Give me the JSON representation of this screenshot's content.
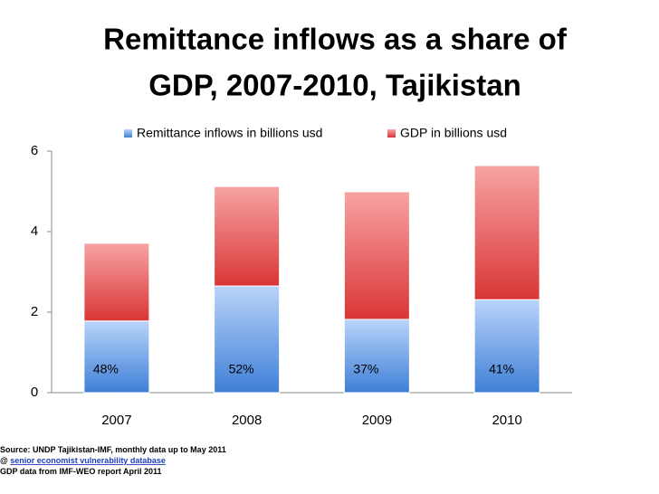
{
  "chart_data": {
    "type": "stacked_bar",
    "title": [
      "Remittance inflows as a share of",
      "GDP, 2007-2010, Tajikistan"
    ],
    "categories": [
      "2007",
      "2008",
      "2009",
      "2010"
    ],
    "series": [
      {
        "name": "Remittance inflows in billions usd",
        "color": "#6fa4ec",
        "values": [
          1.78,
          2.65,
          1.82,
          2.31
        ]
      },
      {
        "name": "GDP in billions usd",
        "color": "#e84a4a",
        "values": [
          1.93,
          2.47,
          3.17,
          3.33
        ]
      }
    ],
    "annotations": [
      "48%",
      "52%",
      "37%",
      "41%"
    ],
    "ylim": [
      0,
      6
    ],
    "yticks": [
      0,
      2,
      4,
      6
    ],
    "legend": "top",
    "source": {
      "line1": "Source: UNDP Tajikistan-IMF, monthly data up to May 2011",
      "prefix": "@ ",
      "link": "senior economist vulnerability database",
      "line3": "GDP data from IMF-WEO report April 2011"
    }
  }
}
